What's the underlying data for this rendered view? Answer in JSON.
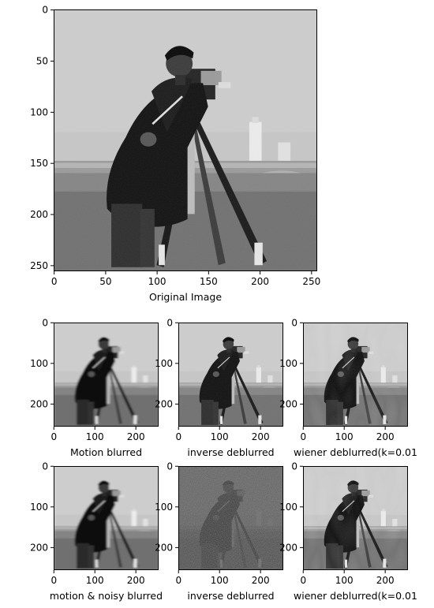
{
  "figure": {
    "panels": [
      {
        "id": "original",
        "xlabel": "Original Image",
        "x_ticks": [
          "0",
          "50",
          "100",
          "150",
          "200",
          "250"
        ],
        "y_ticks": [
          "0",
          "50",
          "100",
          "150",
          "200",
          "250"
        ],
        "style": "sharp"
      },
      {
        "id": "motion-blurred",
        "xlabel": "Motion blurred",
        "x_ticks": [
          "0",
          "100",
          "200"
        ],
        "y_ticks": [
          "0",
          "100",
          "200"
        ],
        "style": "blur"
      },
      {
        "id": "inverse-deblurred-1",
        "xlabel": "inverse deblurred",
        "x_ticks": [
          "0",
          "100",
          "200"
        ],
        "y_ticks": [
          "0",
          "100",
          "200"
        ],
        "style": "sharp"
      },
      {
        "id": "wiener-deblurred-1",
        "xlabel": "wiener deblurred(k=0.01",
        "x_ticks": [
          "0",
          "100",
          "200"
        ],
        "y_ticks": [
          "0",
          "100",
          "200"
        ],
        "style": "wiener"
      },
      {
        "id": "motion-noisy-blurred",
        "xlabel": "motion & noisy blurred",
        "x_ticks": [
          "0",
          "100",
          "200"
        ],
        "y_ticks": [
          "0",
          "100",
          "200"
        ],
        "style": "blur"
      },
      {
        "id": "inverse-deblurred-2",
        "xlabel": "inverse deblurred",
        "x_ticks": [
          "0",
          "100",
          "200"
        ],
        "y_ticks": [
          "0",
          "100",
          "200"
        ],
        "style": "noise"
      },
      {
        "id": "wiener-deblurred-2",
        "xlabel": "wiener deblurred(k=0.01",
        "x_ticks": [
          "0",
          "100",
          "200"
        ],
        "y_ticks": [
          "0",
          "100",
          "200"
        ],
        "style": "wiener"
      }
    ]
  }
}
